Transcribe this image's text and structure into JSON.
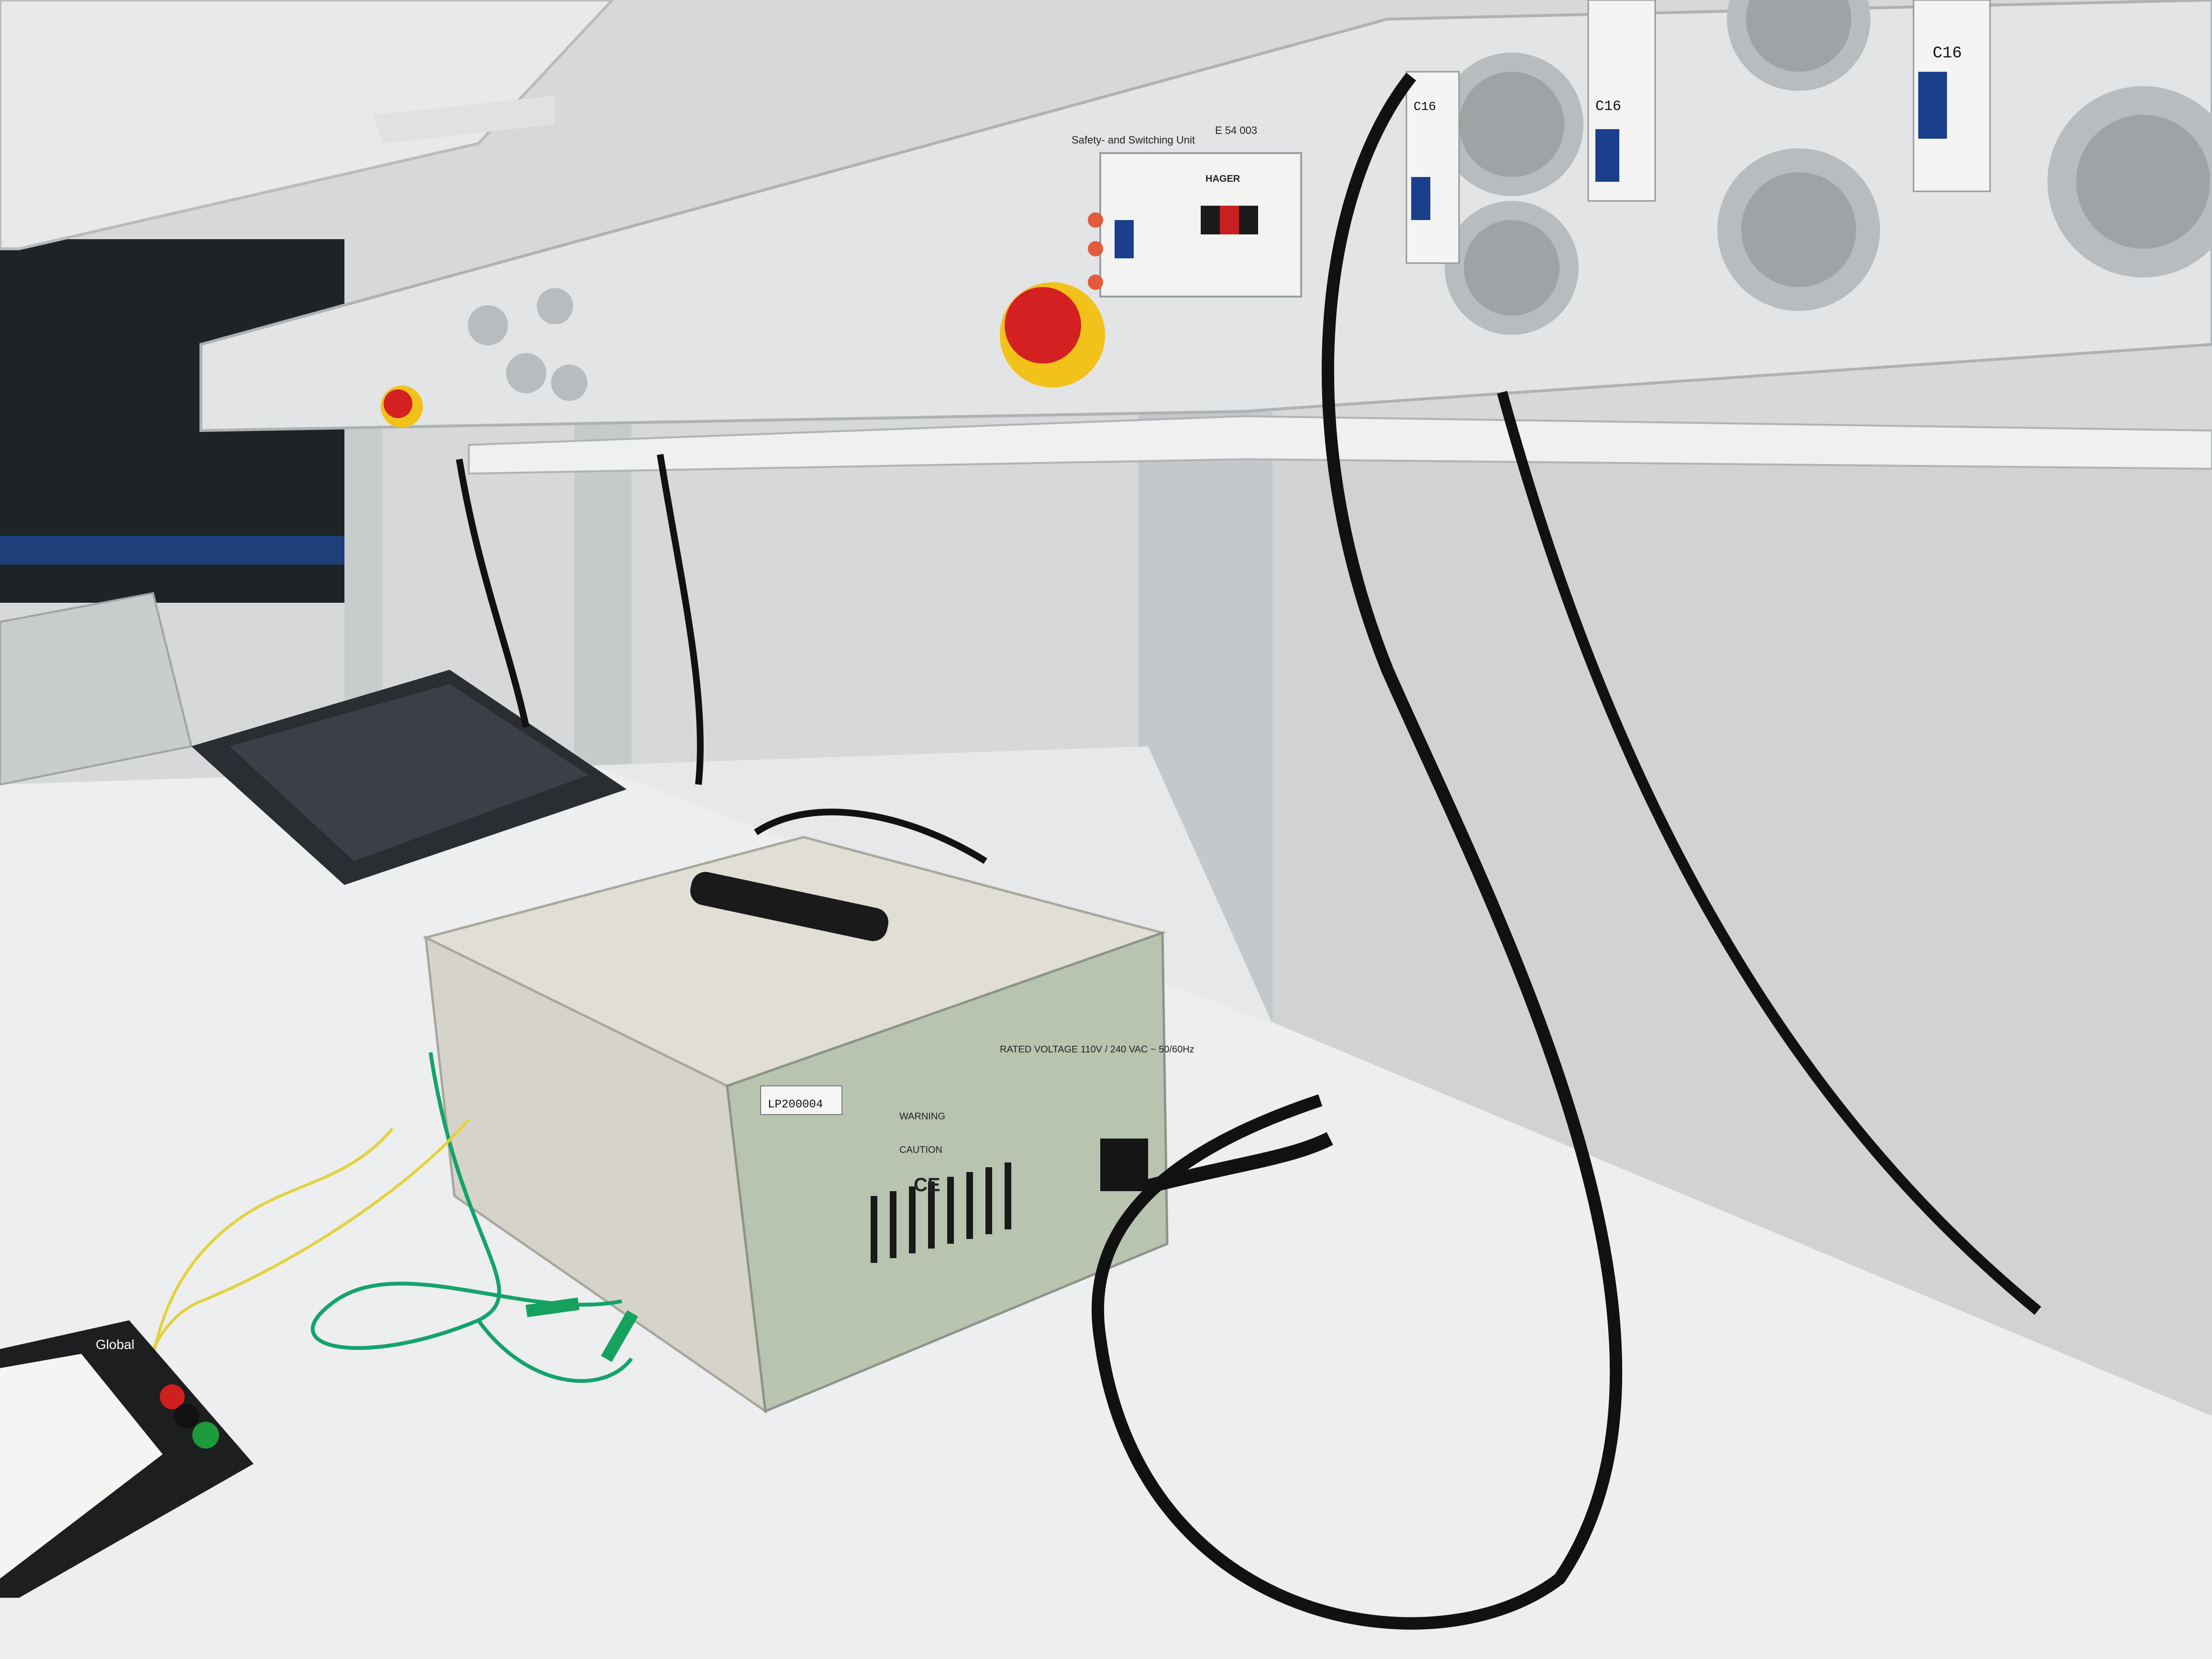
{
  "scene": {
    "description_tag": "lab-bench-photo"
  },
  "rail": {
    "module_title": "Safety- and Switching Unit",
    "module_code": "E 54 003",
    "brand": "HAGER"
  },
  "breakers": [
    {
      "rating": "C16"
    },
    {
      "rating": "C16"
    },
    {
      "rating": "C16"
    }
  ],
  "psu": {
    "asset_tag": "LP200004",
    "rated_voltage": "RATED VOLTAGE  110V / 240 VAC ~ 50/60Hz",
    "warning": "WARNING",
    "caution": "CAUTION",
    "ce_mark": "CE"
  },
  "breadboard": {
    "brand": "Global"
  },
  "colors": {
    "bench": "#e9ebec",
    "wall": "#d2d4d5",
    "rail": "#c9cccd",
    "psu_body": "#d8d6cc",
    "emergency_red": "#d42020",
    "emergency_yellow": "#f2c21a",
    "cable": "#111111",
    "wire_green": "#14a36b",
    "wire_yellow": "#e3d23a"
  }
}
